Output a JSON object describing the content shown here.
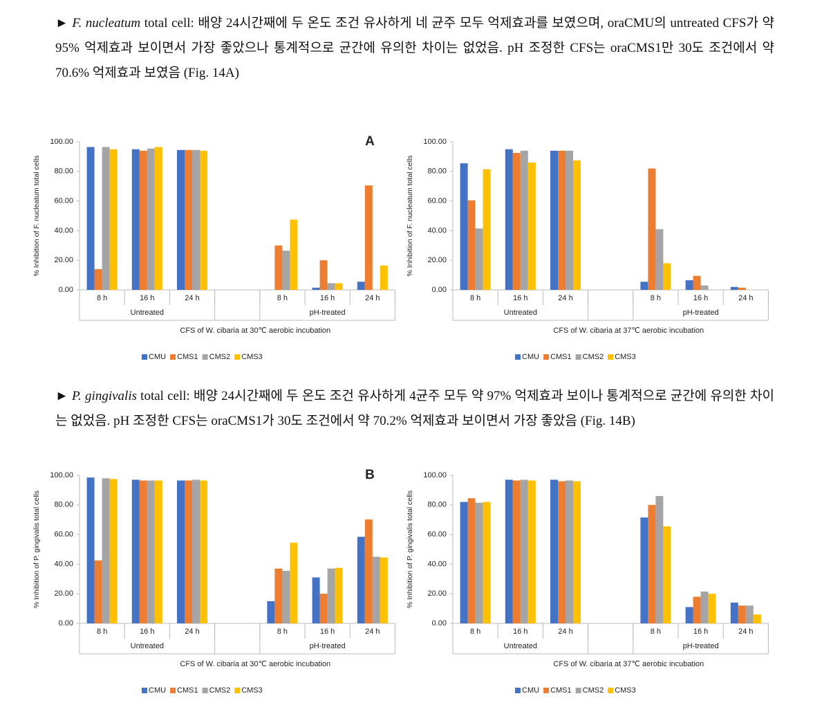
{
  "paragraphs": [
    {
      "species": "F. nucleatum",
      "text": " total cell: 배양 24시간째에 두 온도 조건 유사하게 네 균주 모두 억제효과를 보였으며, oraCMU의 untreated CFS가 약 95% 억제효과 보이면서 가장 좋았으나 통계적으로 균간에 유의한 차이는 없었음. pH 조정한 CFS는 oraCMS1만 30도 조건에서 약 70.6% 억제효과 보였음 (Fig. 14A)"
    },
    {
      "species": "P. gingivalis",
      "text": " total cell: 배양 24시간째에 두 온도 조건 유사하게 4균주 모두 약 97%  억제효과 보이나 통계적으로 균간에 유의한 차이는 없었음. pH 조정한 CFS는 oraCMS1가 30도 조건에서 약 70.2% 억제효과 보이면서 가장 좋았음 (Fig. 14B)"
    }
  ],
  "chart_data": [
    {
      "type": "bar",
      "panel_label": "A",
      "ylabel": "% Inhibition of F. nucleatum total cells",
      "xlabel": "CFS of W. cibaria at 30℃ aerobic incubation",
      "categories": [
        "8 h",
        "16 h",
        "24 h",
        null,
        "8 h",
        "16 h",
        "24 h"
      ],
      "groups": [
        "Untreated",
        "pH-treated"
      ],
      "ylim": [
        0,
        100
      ],
      "yticks": [
        {
          "value": 0,
          "label": "0.00"
        },
        {
          "value": 20,
          "label": "20.00"
        },
        {
          "value": 40,
          "label": "40.00"
        },
        {
          "value": 60,
          "label": "60.00"
        },
        {
          "value": 80,
          "label": "80.00"
        },
        {
          "value": 100,
          "label": "100.00"
        }
      ],
      "series": [
        {
          "name": "CMU",
          "color": "#4472c4",
          "values": [
            96.5,
            95,
            94.5,
            null,
            0,
            1.5,
            5.5
          ]
        },
        {
          "name": "CMS1",
          "color": "#ed7d31",
          "values": [
            14,
            94,
            94.5,
            null,
            30,
            20,
            70.6
          ]
        },
        {
          "name": "CMS2",
          "color": "#a5a5a5",
          "values": [
            96.5,
            95.5,
            94.5,
            null,
            26.5,
            4.5,
            0
          ]
        },
        {
          "name": "CMS3",
          "color": "#ffc000",
          "values": [
            95,
            96.5,
            94,
            null,
            47.5,
            4.5,
            16.5
          ]
        }
      ]
    },
    {
      "type": "bar",
      "ylabel": "% Inhibition of F. nucleatum total cells",
      "xlabel": "CFS of W. cibaria at 37℃ aerobic incubation",
      "categories": [
        "8 h",
        "16 h",
        "24 h",
        null,
        "8 h",
        "16 h",
        "24 h"
      ],
      "groups": [
        "Untreated",
        "pH-treated"
      ],
      "ylim": [
        0,
        100
      ],
      "yticks": [
        {
          "value": 0,
          "label": "0.00"
        },
        {
          "value": 20,
          "label": "20.00"
        },
        {
          "value": 40,
          "label": "40.00"
        },
        {
          "value": 60,
          "label": "60.00"
        },
        {
          "value": 80,
          "label": "80.00"
        },
        {
          "value": 100,
          "label": "100.00"
        }
      ],
      "series": [
        {
          "name": "CMU",
          "color": "#4472c4",
          "values": [
            85.5,
            95,
            94,
            null,
            5.5,
            6.5,
            2
          ]
        },
        {
          "name": "CMS1",
          "color": "#ed7d31",
          "values": [
            60.5,
            92.5,
            94,
            null,
            82,
            9.5,
            1.5
          ]
        },
        {
          "name": "CMS2",
          "color": "#a5a5a5",
          "values": [
            41.5,
            94,
            94,
            null,
            41,
            3,
            0
          ]
        },
        {
          "name": "CMS3",
          "color": "#ffc000",
          "values": [
            81.5,
            86,
            87.5,
            null,
            18,
            0,
            0
          ]
        }
      ]
    },
    {
      "type": "bar",
      "panel_label": "B",
      "ylabel": "% Inhibition of P. gingivalis total cells",
      "xlabel": "CFS of W. cibaria at 30℃ aerobic incubation",
      "categories": [
        "8 h",
        "16 h",
        "24 h",
        null,
        "8 h",
        "16 h",
        "24 h"
      ],
      "groups": [
        "Untreated",
        "pH-treated"
      ],
      "ylim": [
        0,
        100
      ],
      "yticks": [
        {
          "value": 0,
          "label": "0.00"
        },
        {
          "value": 20,
          "label": "20.00"
        },
        {
          "value": 40,
          "label": "40.00"
        },
        {
          "value": 60,
          "label": "60.00"
        },
        {
          "value": 80,
          "label": "80.00"
        },
        {
          "value": 100,
          "label": "100.00"
        }
      ],
      "series": [
        {
          "name": "CMU",
          "color": "#4472c4",
          "values": [
            98.5,
            97,
            96.5,
            null,
            15,
            31,
            58.5
          ]
        },
        {
          "name": "CMS1",
          "color": "#ed7d31",
          "values": [
            42.5,
            96.5,
            96.5,
            null,
            37,
            20,
            70.2
          ]
        },
        {
          "name": "CMS2",
          "color": "#a5a5a5",
          "values": [
            98,
            96.5,
            97,
            null,
            35.5,
            37,
            45
          ]
        },
        {
          "name": "CMS3",
          "color": "#ffc000",
          "values": [
            97.5,
            96.5,
            96.5,
            null,
            54.5,
            37.5,
            44.5
          ]
        }
      ]
    },
    {
      "type": "bar",
      "ylabel": "% Inhibition of P. gingivalis total cells",
      "xlabel": "CFS of W. cibaria at 37℃ aerobic incubation",
      "categories": [
        "8 h",
        "16 h",
        "24 h",
        null,
        "8 h",
        "16 h",
        "24 h"
      ],
      "groups": [
        "Untreated",
        "pH-treated"
      ],
      "ylim": [
        0,
        100
      ],
      "yticks": [
        {
          "value": 0,
          "label": "0.00"
        },
        {
          "value": 20,
          "label": "20.00"
        },
        {
          "value": 40,
          "label": "40.00"
        },
        {
          "value": 60,
          "label": "60.00"
        },
        {
          "value": 80,
          "label": "80.00"
        },
        {
          "value": 100,
          "label": "100.00"
        }
      ],
      "series": [
        {
          "name": "CMU",
          "color": "#4472c4",
          "values": [
            82,
            97,
            97,
            null,
            71.5,
            11,
            14
          ]
        },
        {
          "name": "CMS1",
          "color": "#ed7d31",
          "values": [
            84.5,
            96.5,
            96,
            null,
            80,
            18,
            12
          ]
        },
        {
          "name": "CMS2",
          "color": "#a5a5a5",
          "values": [
            81.5,
            97,
            96.5,
            null,
            86,
            21.5,
            12
          ]
        },
        {
          "name": "CMS3",
          "color": "#ffc000",
          "values": [
            82,
            96.5,
            96,
            null,
            65.5,
            20,
            6
          ]
        }
      ]
    }
  ]
}
